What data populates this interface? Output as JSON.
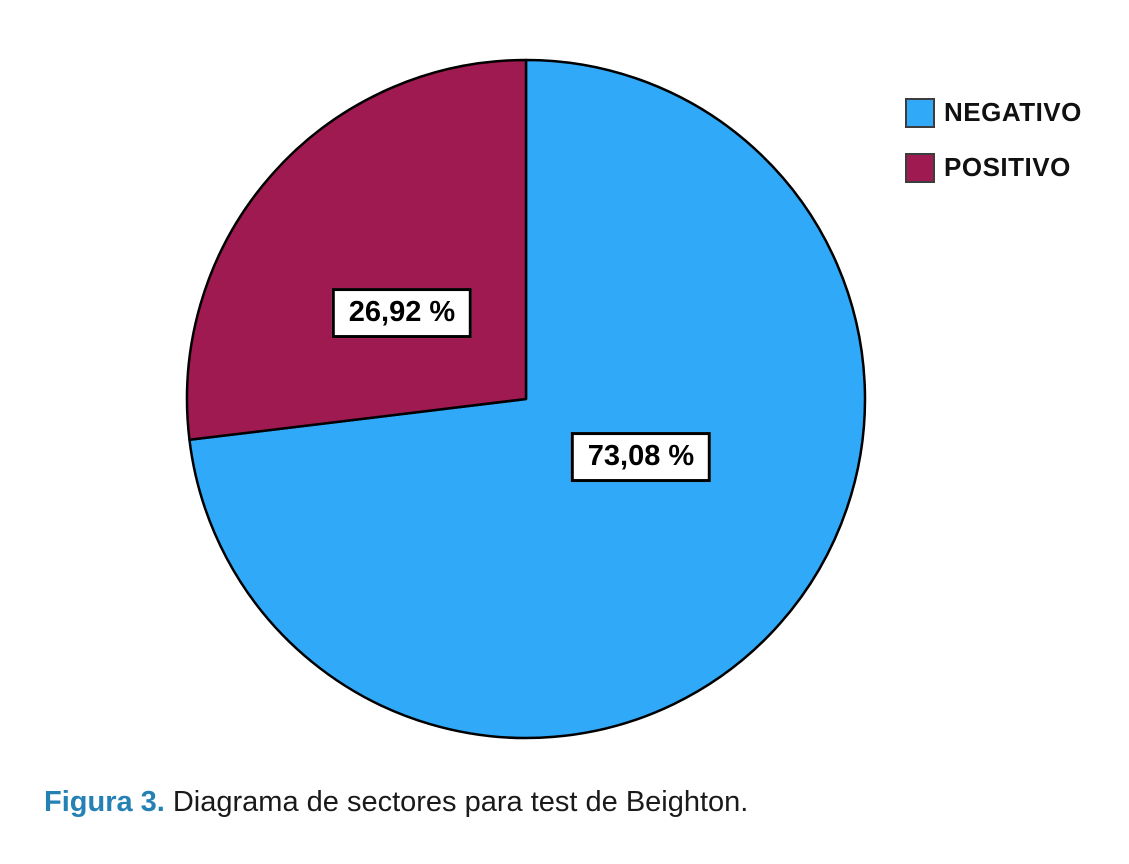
{
  "chart_data": {
    "type": "pie",
    "title": "",
    "categories": [
      "NEGATIVO",
      "POSITIVO"
    ],
    "values": [
      73.08,
      26.92
    ],
    "slices": [
      {
        "name": "NEGATIVO",
        "value": 73.08,
        "label_text": "73,08 %",
        "color": "#2FA9F8"
      },
      {
        "name": "POSITIVO",
        "value": 26.92,
        "label_text": "26,92 %",
        "color": "#A01A52"
      }
    ],
    "start_angle_deg": -90,
    "direction": "clockwise",
    "outline_color": "#000000",
    "legend_position": "top-right",
    "legend_entries": [
      "NEGATIVO",
      "POSITIVO"
    ]
  },
  "caption": {
    "label": "Figura 3.",
    "text": "Diagrama de sectores para test de Beighton.",
    "label_color": "#2580B4"
  }
}
